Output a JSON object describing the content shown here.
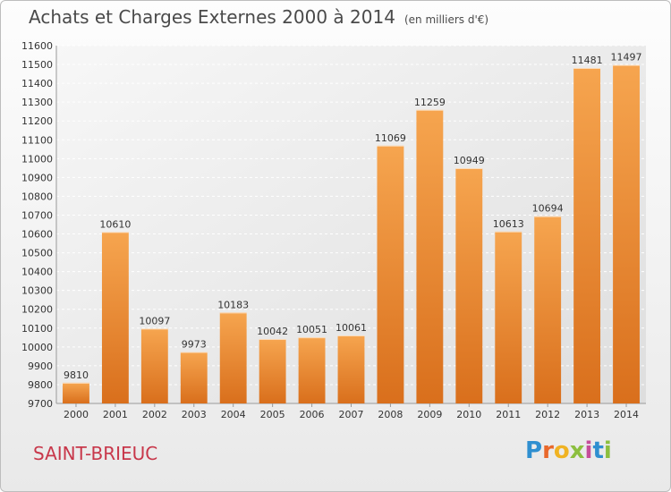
{
  "chart_data": {
    "type": "bar",
    "title": "Achats et Charges Externes 2000 à 2014",
    "subtitle": "(en milliers d'€)",
    "xlabel": "",
    "ylabel": "",
    "categories": [
      "2000",
      "2001",
      "2002",
      "2003",
      "2004",
      "2005",
      "2006",
      "2007",
      "2008",
      "2009",
      "2010",
      "2011",
      "2012",
      "2013",
      "2014"
    ],
    "values": [
      9810,
      10610,
      10097,
      9973,
      10183,
      10042,
      10051,
      10061,
      11069,
      11259,
      10949,
      10613,
      10694,
      11481,
      11497
    ],
    "ylim": [
      9700,
      11600
    ],
    "ytick_step": 100,
    "grid": true,
    "legend": "none",
    "bar_color_light": "#f6a54f",
    "bar_color_dark": "#d96f1c"
  },
  "location_label": "SAINT-BRIEUC",
  "logo": {
    "letters": [
      "P",
      "r",
      "o",
      "x",
      "i",
      "t",
      "i"
    ],
    "colors": [
      "#2f8fd0",
      "#e9682b",
      "#f0b323",
      "#8cbf3f",
      "#c64d9a",
      "#2f8fd0",
      "#8cbf3f"
    ]
  }
}
